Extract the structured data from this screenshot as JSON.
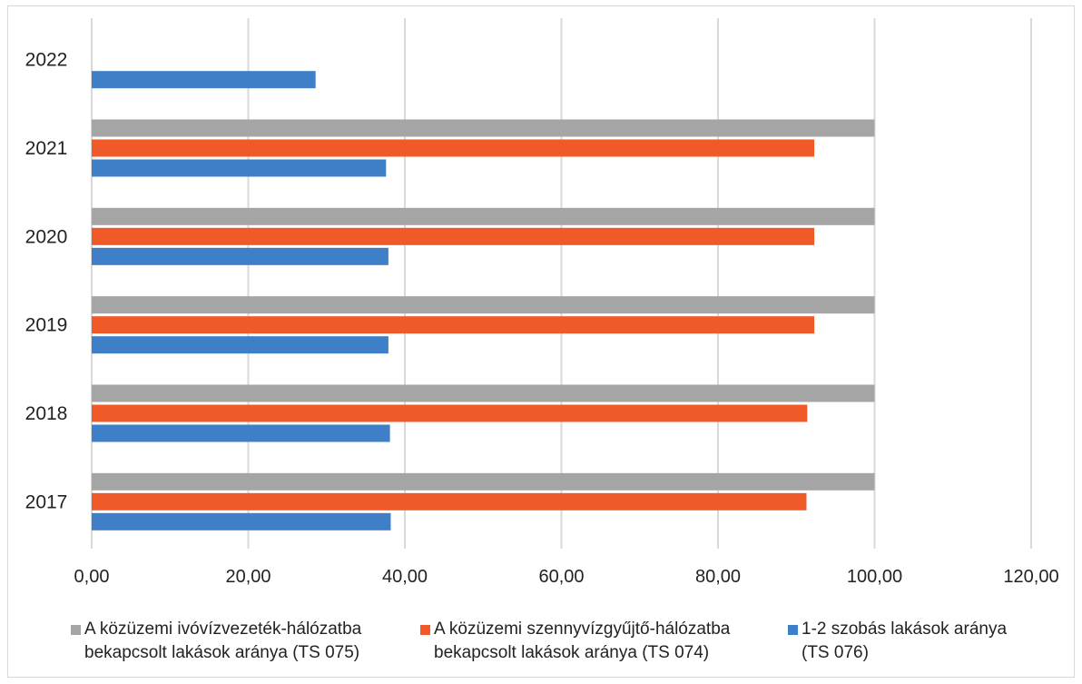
{
  "colors": {
    "gray": "#a5a5a5",
    "orange": "#f05a28",
    "blue": "#3f7fc8",
    "grid": "#d9d9d9"
  },
  "chart_data": {
    "type": "bar",
    "orientation": "horizontal",
    "categories": [
      "2017",
      "2018",
      "2019",
      "2020",
      "2021",
      "2022"
    ],
    "xlim": [
      0,
      120
    ],
    "xticks": [
      "0,00",
      "20,00",
      "40,00",
      "60,00",
      "80,00",
      "100,00",
      "120,00"
    ],
    "grid": true,
    "legend_position": "bottom",
    "series": [
      {
        "name": "A közüzemi ivóvízvezeték-hálózatba\nbekapcsolt lakások aránya (TS 075)",
        "color": "#a5a5a5",
        "values": [
          100,
          100,
          100,
          100,
          100,
          null
        ]
      },
      {
        "name": "A közüzemi szennyvízgyűjtő-hálózatba\nbekapcsolt lakások aránya (TS 074)",
        "color": "#f05a28",
        "values": [
          91.3,
          91.4,
          92.3,
          92.3,
          92.3,
          null
        ]
      },
      {
        "name": "1-2 szobás lakások aránya\n(TS 076)",
        "color": "#3f7fc8",
        "values": [
          38.2,
          38.1,
          37.9,
          37.9,
          37.6,
          28.6
        ]
      }
    ]
  }
}
